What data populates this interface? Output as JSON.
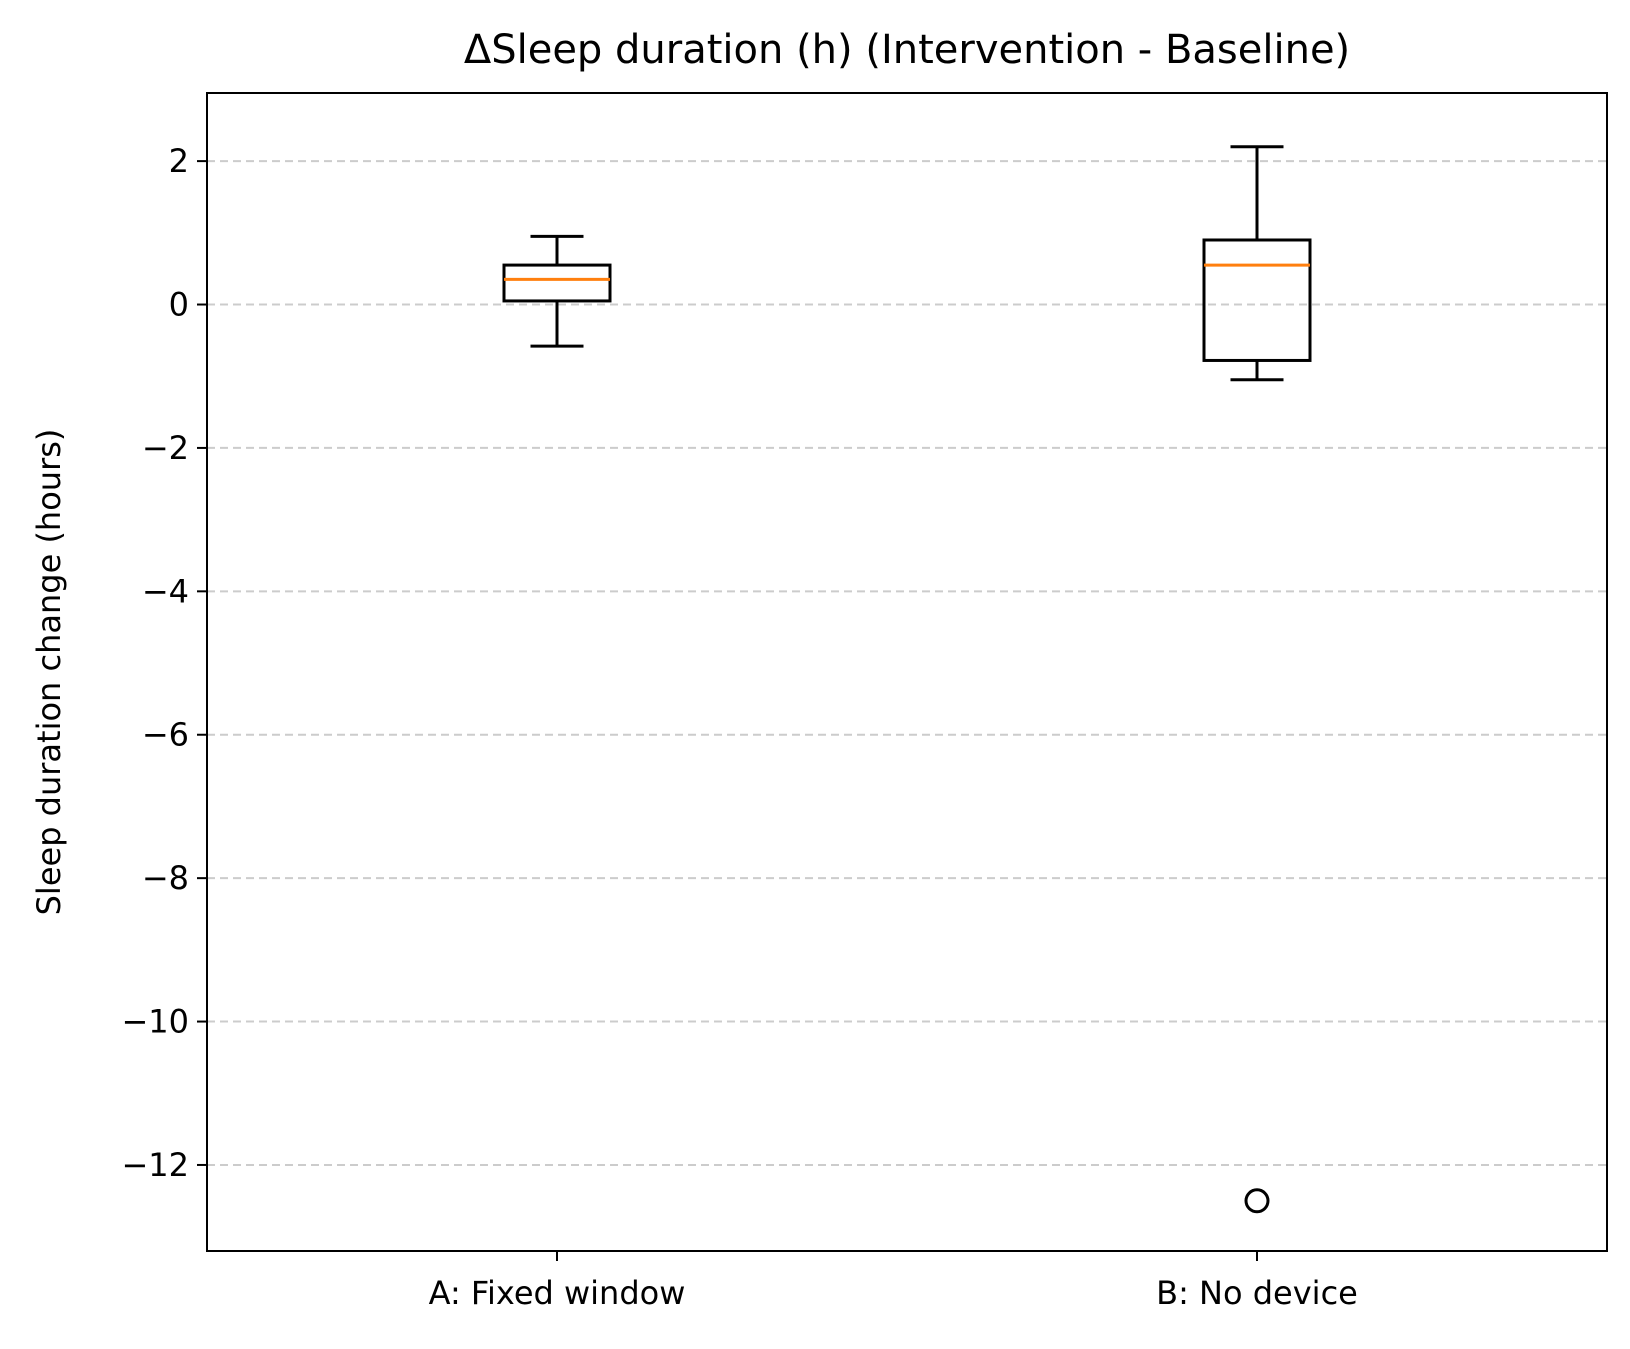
{
  "chart_data": {
    "type": "box",
    "title": "ΔSleep duration (h) (Intervention - Baseline)",
    "xlabel": "",
    "ylabel": "Sleep duration change (hours)",
    "ylim": [
      -13.2,
      2.95
    ],
    "yticks": [
      2,
      0,
      -2,
      -4,
      -6,
      -8,
      -10,
      -12
    ],
    "ytick_labels": [
      "2",
      "0",
      "−2",
      "−4",
      "−6",
      "−8",
      "−10",
      "−12"
    ],
    "grid": {
      "y": true,
      "style": "dashed"
    },
    "categories": [
      "A: Fixed window",
      "B: No device"
    ],
    "boxes": [
      {
        "category": "A: Fixed window",
        "whisker_low": -0.58,
        "q1": 0.05,
        "median": 0.35,
        "q3": 0.55,
        "whisker_high": 0.95,
        "outliers": []
      },
      {
        "category": "B: No device",
        "whisker_low": -1.05,
        "q1": -0.78,
        "median": 0.55,
        "q3": 0.9,
        "whisker_high": 2.2,
        "outliers": [
          -12.5
        ]
      }
    ],
    "colors": {
      "box": "#000000",
      "median": "#ff7f0e",
      "grid": "#cccccc"
    }
  }
}
